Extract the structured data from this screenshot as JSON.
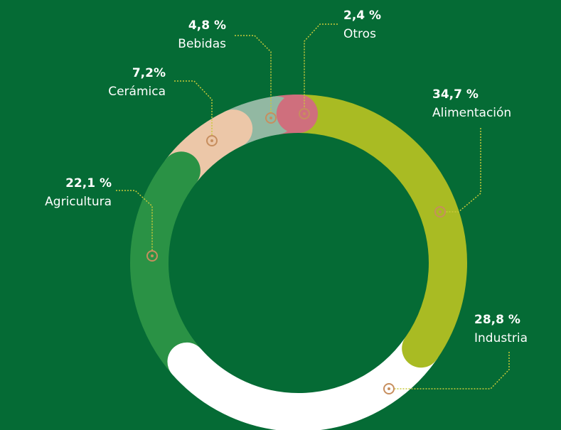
{
  "chart_data": {
    "type": "donut",
    "categories": [
      "Alimentación",
      "Industria",
      "Agricultura",
      "Cerámica",
      "Bebidas",
      "Otros"
    ],
    "values": [
      34.7,
      28.8,
      22.1,
      7.2,
      4.8,
      2.4
    ],
    "value_labels": [
      "34,7 %",
      "28,8 %",
      "22,1 %",
      "7,2%",
      "4,8 %",
      "2,4 %"
    ],
    "colors": [
      "#a9bb23",
      "#ffffff",
      "#2a9245",
      "#ecc7a8",
      "#92b8a2",
      "#cf6f7d"
    ]
  }
}
